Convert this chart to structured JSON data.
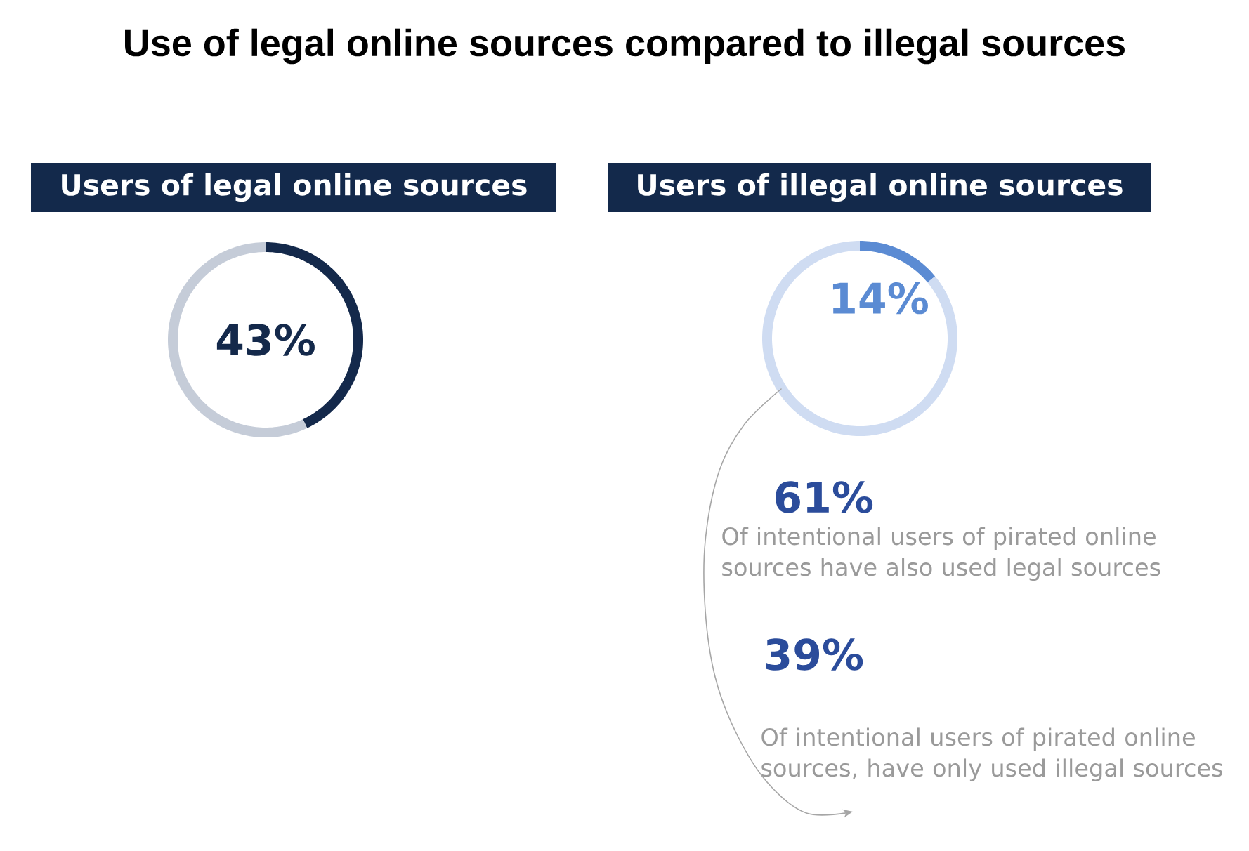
{
  "chart_data": [
    {
      "type": "donut",
      "title": "Use of legal online sources compared to illegal sources",
      "subtitle": "Users of legal online sources",
      "categories": [
        null,
        null
      ],
      "values": [
        43,
        57
      ],
      "colors": [
        "#14294b",
        "#c5ccd8"
      ],
      "value_labels": [
        "43%",
        null
      ]
    },
    {
      "type": "donut",
      "subtitle": "Users of illegal online sources",
      "categories": [
        null,
        null
      ],
      "values": [
        14,
        86
      ],
      "colors": [
        "#5b8bd3",
        "#cfdcf2"
      ],
      "value_labels": [
        "14%",
        null
      ],
      "annotations": [
        "61%",
        "Of intentional users of pirated online sources have also used legal sources",
        "39%",
        "Of intentional users of pirated online sources, have only used illegal sources"
      ]
    }
  ]
}
